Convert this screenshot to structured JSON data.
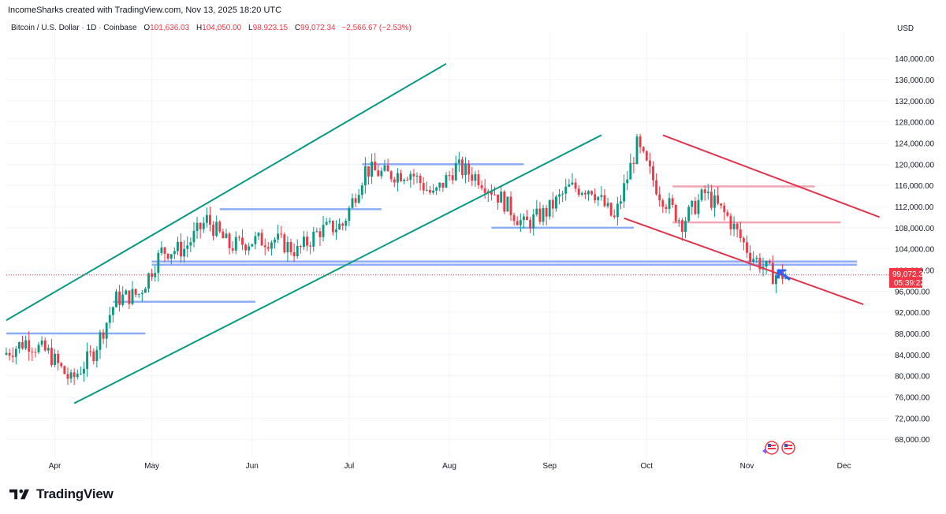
{
  "header": {
    "credit": "IncomeSharks created with TradingView.com, Nov 13, 2025 18:20 UTC",
    "symbol": "Bitcoin / U.S. Dollar",
    "interval": "1D",
    "exchange": "Coinbase",
    "ohlc": {
      "open_label": "O",
      "open": "101,636.03",
      "high_label": "H",
      "high": "104,050.00",
      "low_label": "L",
      "low": "98,923.15",
      "close_label": "C",
      "close": "99,072.34",
      "change": "−2,566.67 (−2.53%)"
    },
    "currency": "USD"
  },
  "price_tag": {
    "price": "99,072.34",
    "countdown": "05:39:22",
    "color": "#f23645"
  },
  "brand": {
    "name": "TradingView",
    "logo_icon": "tradingview-logo-icon"
  },
  "colors": {
    "up": "#089981",
    "down": "#f23645",
    "channel_up": "#089981",
    "channel_down": "#e0344a",
    "support": "#7b9ff5",
    "resistance": "#f09aa8",
    "arrow": "#2962ff"
  },
  "event_icons": [
    "us-flag-icon",
    "us-flag-icon"
  ],
  "chart_data": {
    "type": "candlestick",
    "instrument": "Bitcoin / U.S. Dollar",
    "x_tick_labels": [
      "Apr",
      "May",
      "Jun",
      "Jul",
      "Aug",
      "Sep",
      "Oct",
      "Nov",
      "Dec"
    ],
    "y_tick_labels": [
      "68,000.00",
      "72,000.00",
      "76,000.00",
      "80,000.00",
      "84,000.00",
      "88,000.00",
      "92,000.00",
      "96,000.00",
      "100,000.00",
      "104,000.00",
      "108,000.00",
      "112,000.00",
      "116,000.00",
      "120,000.00",
      "124,000.00",
      "128,000.00",
      "132,000.00",
      "136,000.00",
      "140,000.00"
    ],
    "y_ticks": [
      68000,
      72000,
      76000,
      80000,
      84000,
      88000,
      92000,
      96000,
      100000,
      104000,
      108000,
      112000,
      116000,
      120000,
      124000,
      128000,
      132000,
      136000,
      140000
    ],
    "ylim": [
      64600,
      143600
    ],
    "xlim": [
      "2025-03-17",
      "2025-12-15"
    ],
    "month_starts": [
      "2025-04-01",
      "2025-05-01",
      "2025-06-01",
      "2025-07-01",
      "2025-08-01",
      "2025-09-01",
      "2025-10-01",
      "2025-11-01",
      "2025-12-01"
    ],
    "series_weekly_close": [
      {
        "date": "2025-03-17",
        "close": 84000
      },
      {
        "date": "2025-03-24",
        "close": 86500
      },
      {
        "date": "2025-03-31",
        "close": 84300
      },
      {
        "date": "2025-04-07",
        "close": 79000
      },
      {
        "date": "2025-04-14",
        "close": 84500
      },
      {
        "date": "2025-04-21",
        "close": 94500
      },
      {
        "date": "2025-04-28",
        "close": 95500
      },
      {
        "date": "2025-05-05",
        "close": 103500
      },
      {
        "date": "2025-05-12",
        "close": 104000
      },
      {
        "date": "2025-05-19",
        "close": 109500
      },
      {
        "date": "2025-05-26",
        "close": 104500
      },
      {
        "date": "2025-06-02",
        "close": 105500
      },
      {
        "date": "2025-06-09",
        "close": 105800
      },
      {
        "date": "2025-06-16",
        "close": 103500
      },
      {
        "date": "2025-06-23",
        "close": 107500
      },
      {
        "date": "2025-06-30",
        "close": 108500
      },
      {
        "date": "2025-07-07",
        "close": 119000
      },
      {
        "date": "2025-07-14",
        "close": 118000
      },
      {
        "date": "2025-07-21",
        "close": 118500
      },
      {
        "date": "2025-07-28",
        "close": 114000
      },
      {
        "date": "2025-08-04",
        "close": 119500
      },
      {
        "date": "2025-08-11",
        "close": 117500
      },
      {
        "date": "2025-08-18",
        "close": 113500
      },
      {
        "date": "2025-08-25",
        "close": 108500
      },
      {
        "date": "2025-09-01",
        "close": 111000
      },
      {
        "date": "2025-09-08",
        "close": 115500
      },
      {
        "date": "2025-09-15",
        "close": 115500
      },
      {
        "date": "2025-09-22",
        "close": 109500
      },
      {
        "date": "2025-09-29",
        "close": 123500
      },
      {
        "date": "2025-10-06",
        "close": 114500
      },
      {
        "date": "2025-10-13",
        "close": 109000
      },
      {
        "date": "2025-10-20",
        "close": 114500
      },
      {
        "date": "2025-10-27",
        "close": 110000
      },
      {
        "date": "2025-11-03",
        "close": 103000
      },
      {
        "date": "2025-11-10",
        "close": 99072
      }
    ],
    "horizontal_levels": [
      {
        "price": 88000,
        "from": "2025-03-17",
        "to": "2025-04-29",
        "color": "support"
      },
      {
        "price": 94000,
        "from": "2025-04-19",
        "to": "2025-06-02",
        "color": "support"
      },
      {
        "price": 101600,
        "from": "2025-05-01",
        "to": "2025-12-05",
        "color": "support"
      },
      {
        "price": 101000,
        "from": "2025-05-01",
        "to": "2025-12-05",
        "color": "support"
      },
      {
        "price": 111500,
        "from": "2025-05-22",
        "to": "2025-07-11",
        "color": "support"
      },
      {
        "price": 120000,
        "from": "2025-07-05",
        "to": "2025-08-24",
        "color": "support"
      },
      {
        "price": 108000,
        "from": "2025-08-14",
        "to": "2025-09-27",
        "color": "support"
      },
      {
        "price": 115800,
        "from": "2025-10-09",
        "to": "2025-11-22",
        "color": "resistance"
      },
      {
        "price": 109000,
        "from": "2025-10-09",
        "to": "2025-11-30",
        "color": "resistance"
      }
    ],
    "trendlines": [
      {
        "from": {
          "date": "2025-03-17",
          "price": 90500
        },
        "to": {
          "date": "2025-07-31",
          "price": 139000
        },
        "color": "channel_up"
      },
      {
        "from": {
          "date": "2025-04-07",
          "price": 74800
        },
        "to": {
          "date": "2025-09-17",
          "price": 125500
        },
        "color": "channel_up"
      },
      {
        "from": {
          "date": "2025-10-06",
          "price": 125500
        },
        "to": {
          "date": "2025-12-12",
          "price": 110000
        },
        "color": "channel_down"
      },
      {
        "from": {
          "date": "2025-09-24",
          "price": 109800
        },
        "to": {
          "date": "2025-12-07",
          "price": 93500
        },
        "color": "channel_down"
      }
    ]
  }
}
